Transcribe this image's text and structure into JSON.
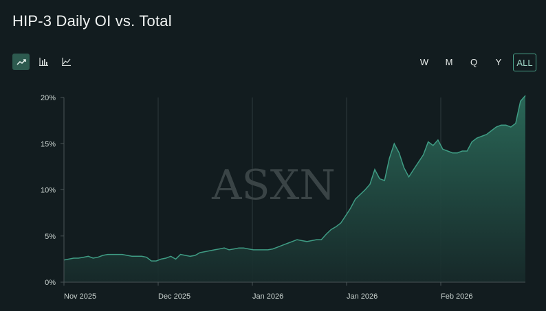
{
  "header": {
    "title": "HIP-3 Daily OI vs. Total"
  },
  "chart_type_buttons": [
    {
      "name": "area-chart-button",
      "icon": "trending-up-icon",
      "active": true
    },
    {
      "name": "bar-chart-button",
      "icon": "bar-chart-icon",
      "active": false
    },
    {
      "name": "line-chart-button",
      "icon": "line-chart-icon",
      "active": false
    }
  ],
  "range_buttons": [
    {
      "label": "W",
      "active": false
    },
    {
      "label": "M",
      "active": false
    },
    {
      "label": "Q",
      "active": false
    },
    {
      "label": "Y",
      "active": false
    },
    {
      "label": "ALL",
      "active": true
    }
  ],
  "watermark": "ASXN",
  "colors": {
    "accent": "#4aa48c",
    "line": "#3f9c84",
    "fill_top": "#2b6b5a",
    "fill_bottom": "#172a2a",
    "background": "#121c1f"
  },
  "chart_data": {
    "type": "area",
    "title": "HIP-3 Daily OI vs. Total",
    "xlabel": "",
    "ylabel": "",
    "ylim": [
      0,
      20
    ],
    "y_ticks": [
      "0%",
      "5%",
      "10%",
      "15%",
      "20%"
    ],
    "x_tick_labels": [
      "Nov 2025",
      "Dec 2025",
      "Jan 2026",
      "Jan 2026",
      "Feb 2026"
    ],
    "grid": "vertical lines at x ticks",
    "unit": "%",
    "values": [
      2.4,
      2.5,
      2.6,
      2.6,
      2.7,
      2.8,
      2.6,
      2.7,
      2.9,
      3.0,
      3.0,
      3.0,
      3.0,
      2.9,
      2.8,
      2.8,
      2.8,
      2.7,
      2.3,
      2.3,
      2.5,
      2.6,
      2.8,
      2.5,
      3.0,
      2.9,
      2.8,
      2.9,
      3.2,
      3.3,
      3.4,
      3.5,
      3.6,
      3.7,
      3.5,
      3.6,
      3.7,
      3.7,
      3.6,
      3.5,
      3.5,
      3.5,
      3.5,
      3.6,
      3.8,
      4.0,
      4.2,
      4.4,
      4.6,
      4.5,
      4.4,
      4.5,
      4.6,
      4.6,
      5.2,
      5.7,
      6.0,
      6.4,
      7.2,
      8.0,
      9.0,
      9.5,
      10.0,
      10.6,
      12.2,
      11.2,
      11.0,
      13.4,
      15.0,
      14.0,
      12.4,
      11.4,
      12.2,
      13.0,
      13.8,
      15.2,
      14.8,
      15.4,
      14.4,
      14.2,
      14.0,
      14.0,
      14.2,
      14.2,
      15.2,
      15.6,
      15.8,
      16.0,
      16.4,
      16.8,
      17.0,
      17.0,
      16.8,
      17.2,
      19.6,
      20.2
    ]
  }
}
